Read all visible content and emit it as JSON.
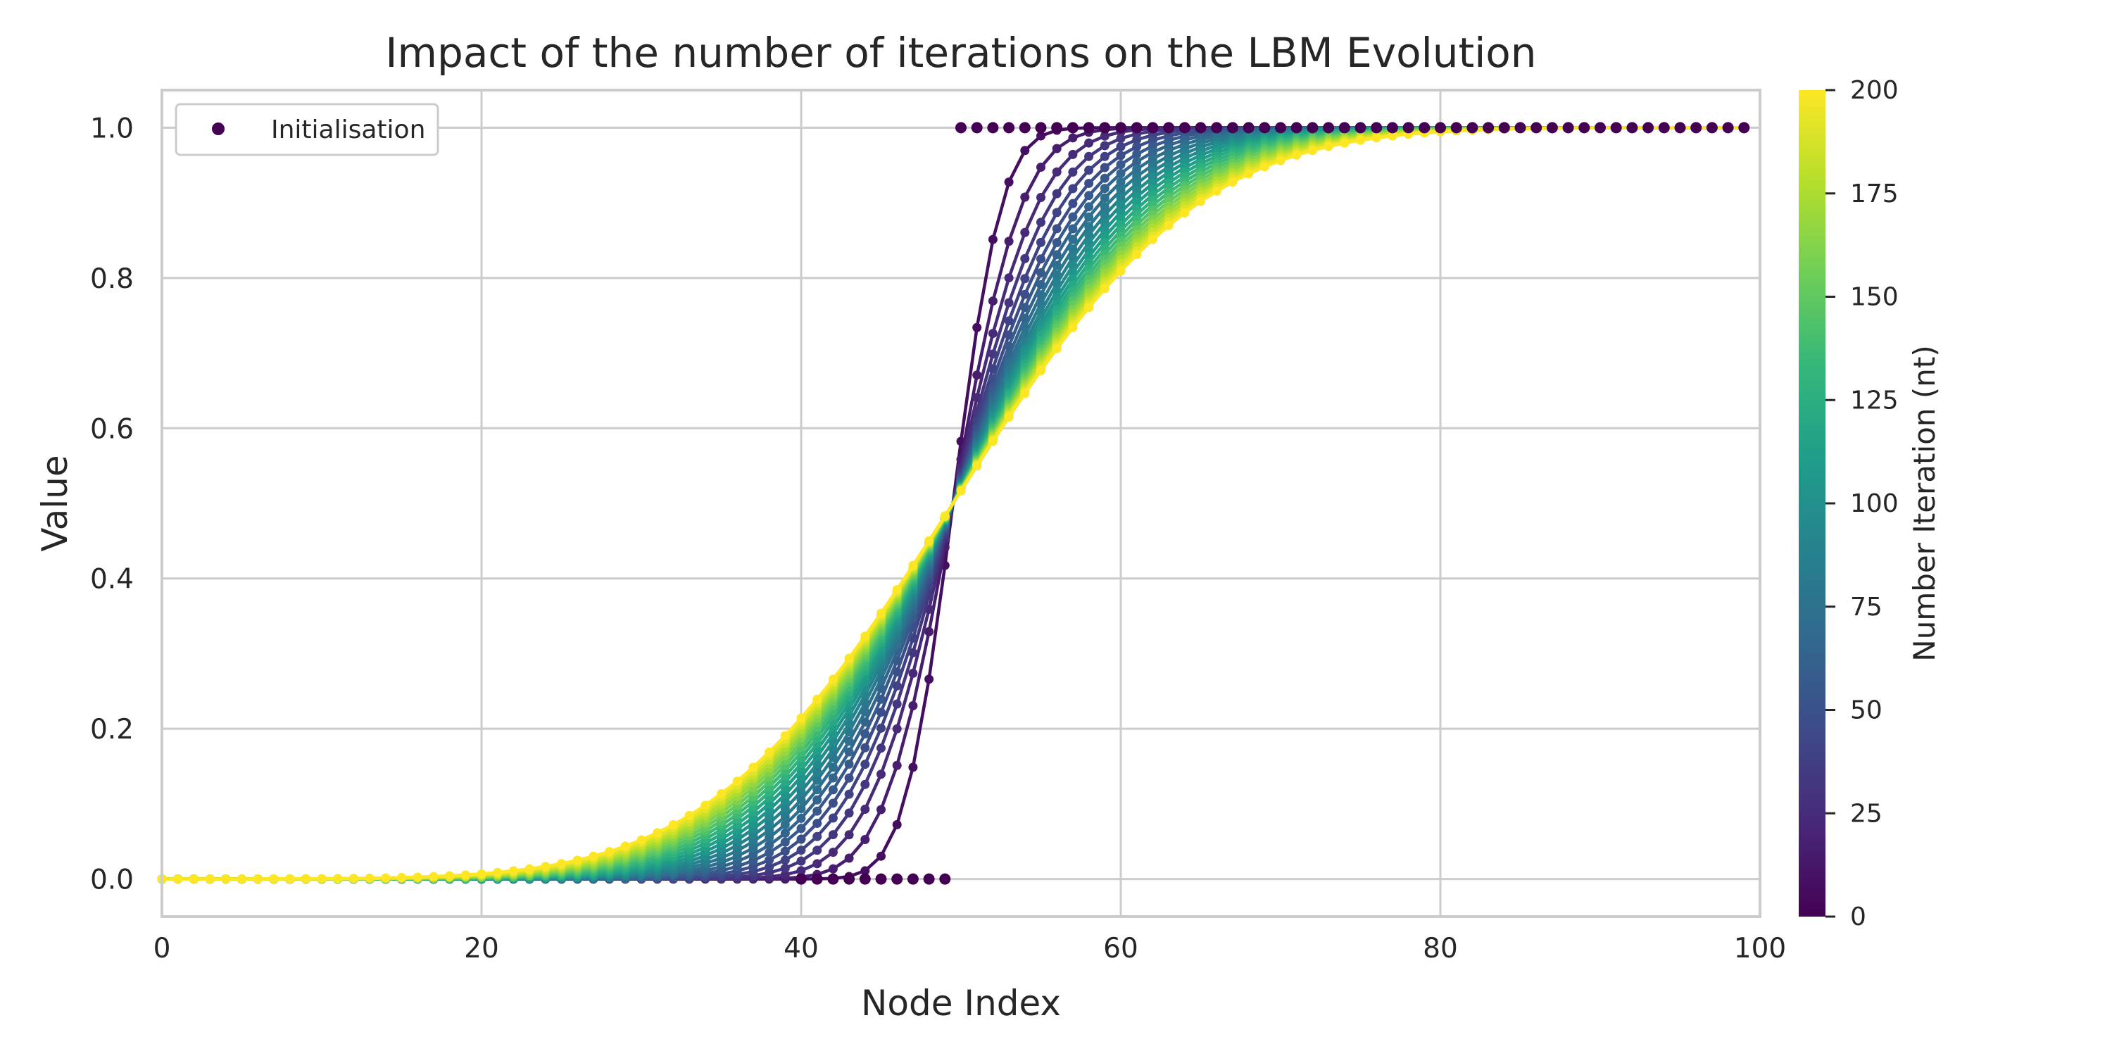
{
  "chart_data": {
    "type": "line",
    "title": "Impact of the number of iterations on the LBM Evolution",
    "xlabel": "Node Index",
    "ylabel": "Value",
    "xlim": [
      0,
      100
    ],
    "ylim": [
      -0.05,
      1.05
    ],
    "x_ticks": [
      0,
      20,
      40,
      60,
      80,
      100
    ],
    "y_ticks": [
      0.0,
      0.2,
      0.4,
      0.6,
      0.8,
      1.0
    ],
    "grid": true,
    "legend": {
      "placement": "top-left",
      "entries": [
        "Initialisation"
      ]
    },
    "colorbar": {
      "label": "Number Iteration (nt)",
      "colormap": "viridis",
      "range": [
        0,
        200
      ],
      "ticks": [
        0,
        25,
        50,
        75,
        100,
        125,
        150,
        175,
        200
      ]
    },
    "series_model": {
      "x_nodes": {
        "start": 0,
        "stop": 99,
        "step": 1
      },
      "initial_condition": {
        "step_at_node": 50,
        "value_left": 0.0,
        "value_right": 1.0
      },
      "iterations": {
        "start": 0,
        "stop": 200,
        "step": 8
      },
      "boundary_values": {
        "left": 0.0,
        "right": 1.0
      }
    },
    "colors": {
      "viridis_stops": [
        "#440154",
        "#482878",
        "#3e4989",
        "#31688e",
        "#26828e",
        "#1f9e89",
        "#35b779",
        "#6ece58",
        "#b5de2b",
        "#fde725"
      ],
      "grid": "#cccccc",
      "axes_edge": "#cccccc",
      "text": "#262626"
    }
  }
}
